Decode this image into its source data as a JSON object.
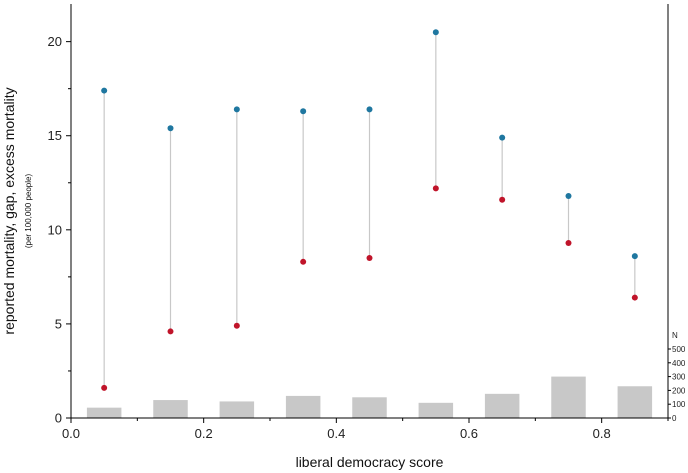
{
  "chart_data": {
    "type": "scatter",
    "xlabel": "liberal democracy score",
    "ylabel": "reported mortality, gap, excess mortality",
    "ylabel_sub": "(per 100,000 people)",
    "xlim": [
      0.0,
      0.9
    ],
    "ylim": [
      0,
      22
    ],
    "x_ticks": [
      0.0,
      0.2,
      0.4,
      0.6,
      0.8
    ],
    "x_tick_labels": [
      "0.0",
      "0.2",
      "0.4",
      "0.6",
      "0.8"
    ],
    "y_ticks": [
      0,
      5,
      10,
      15,
      20
    ],
    "y_tick_labels": [
      "0",
      "5",
      "10",
      "15",
      "20"
    ],
    "x": [
      0.05,
      0.15,
      0.25,
      0.35,
      0.45,
      0.55,
      0.65,
      0.75,
      0.85
    ],
    "series": [
      {
        "values": [
          17.4,
          15.4,
          16.4,
          16.3,
          16.4,
          20.5,
          14.9,
          11.8,
          8.6
        ],
        "color": "#1f77a0"
      },
      {
        "values": [
          1.6,
          4.6,
          4.9,
          8.3,
          8.5,
          12.2,
          11.6,
          9.3,
          6.4
        ],
        "color": "#c0142a"
      }
    ],
    "gap_line_color": "#c8c8c8",
    "n_bars": {
      "axis_title": "N",
      "ticks": [
        0,
        100,
        200,
        300,
        400,
        500
      ],
      "tick_labels": [
        "0",
        "100",
        "200",
        "300",
        "400",
        "500"
      ],
      "ylim": [
        0,
        500
      ],
      "values": [
        75,
        130,
        120,
        160,
        150,
        110,
        175,
        300,
        230
      ],
      "color": "#c8c8c8"
    }
  }
}
